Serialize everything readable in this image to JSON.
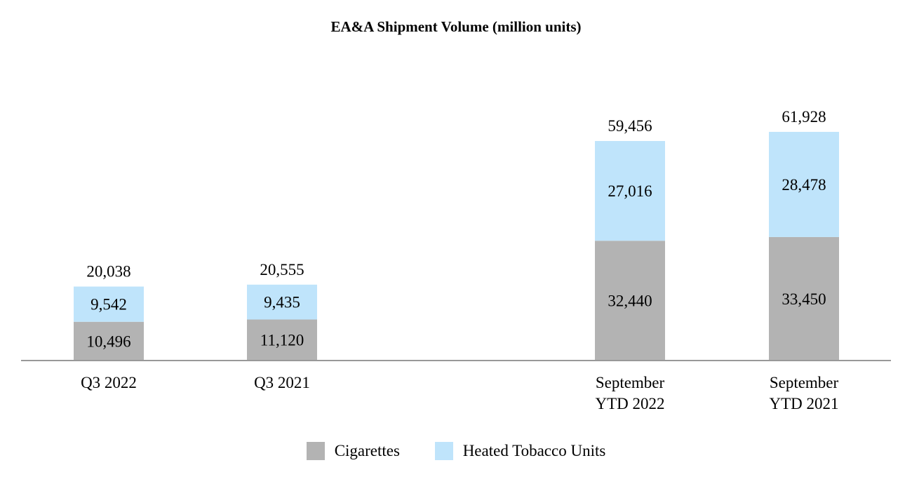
{
  "chart_data": {
    "type": "bar",
    "stacked": true,
    "title": "EA&A Shipment Volume (million units)",
    "categories": [
      [
        "Q3 2022"
      ],
      [
        "Q3 2021"
      ],
      [
        "September",
        "YTD 2022"
      ],
      [
        "September",
        "YTD 2021"
      ]
    ],
    "series": [
      {
        "name": "Cigarettes",
        "color": "#b3b3b3",
        "values": [
          10496,
          11120,
          32440,
          33450
        ]
      },
      {
        "name": "Heated Tobacco Units",
        "color": "#bfe4fb",
        "values": [
          9542,
          9435,
          27016,
          28478
        ]
      }
    ],
    "segment_labels": [
      [
        "10,496",
        "11,120",
        "32,440",
        "33,450"
      ],
      [
        "9,542",
        "9,435",
        "27,016",
        "28,478"
      ]
    ],
    "totals": [
      20038,
      20555,
      59456,
      61928
    ],
    "total_labels": [
      "20,038",
      "20,555",
      "59,456",
      "61,928"
    ],
    "ylim": [
      0,
      61928
    ],
    "grid": false,
    "legend_position": "bottom",
    "axis_color": "#999999"
  }
}
